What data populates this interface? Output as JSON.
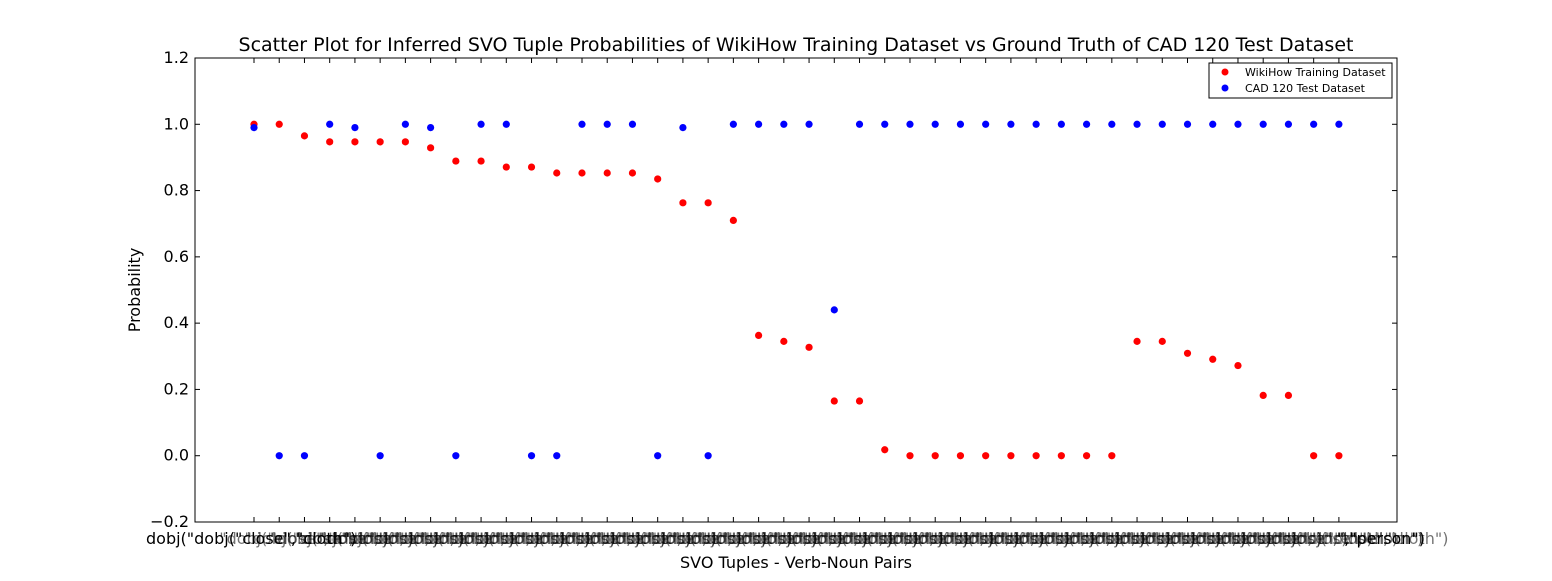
{
  "chart_data": {
    "type": "scatter",
    "title": "Scatter Plot for Inferred SVO Tuple Probabilities of WikiHow Training Dataset vs Ground Truth of CAD 120 Test Dataset",
    "xlabel": "SVO Tuples - Verb-Noun Pairs",
    "ylabel": "Probability",
    "ylim": [
      -0.2,
      1.2
    ],
    "yticks": [
      "−0.2",
      "0.0",
      "0.2",
      "0.4",
      "0.6",
      "0.8",
      "1.0",
      "1.2"
    ],
    "grid": false,
    "legend_position": "top-right",
    "x_tick_labels_text": "dobj(\"dobj(\"close\",\"cloth\")",
    "x_tick_labels_right": "\",\"person\")",
    "series": [
      {
        "name": "WikiHow Training Dataset",
        "color": "#ff0000",
        "values": [
          1.0,
          1.0,
          0.965,
          0.947,
          0.947,
          0.947,
          0.947,
          0.929,
          0.889,
          0.889,
          0.871,
          0.871,
          0.853,
          0.853,
          0.853,
          0.853,
          0.835,
          0.763,
          0.763,
          0.71,
          0.363,
          0.345,
          0.327,
          0.165,
          0.165,
          0.018,
          0.0,
          0.0,
          0.0,
          0.0,
          0.0,
          0.0,
          0.0,
          0.0,
          0.0,
          0.345,
          0.345,
          0.309,
          0.291,
          0.272,
          0.182,
          0.182,
          0.0,
          0.0
        ]
      },
      {
        "name": "CAD 120 Test Dataset",
        "color": "#0000ff",
        "values": [
          0.99,
          0.0,
          0.0,
          1.0,
          0.99,
          0.0,
          1.0,
          0.99,
          0.0,
          1.0,
          1.0,
          0.0,
          0.0,
          1.0,
          1.0,
          1.0,
          0.0,
          0.99,
          0.0,
          1.0,
          1.0,
          1.0,
          1.0,
          0.44,
          1.0,
          1.0,
          1.0,
          1.0,
          1.0,
          1.0,
          1.0,
          1.0,
          1.0,
          1.0,
          1.0,
          1.0,
          1.0,
          1.0,
          1.0,
          1.0,
          1.0,
          1.0,
          1.0,
          1.0
        ]
      }
    ]
  }
}
